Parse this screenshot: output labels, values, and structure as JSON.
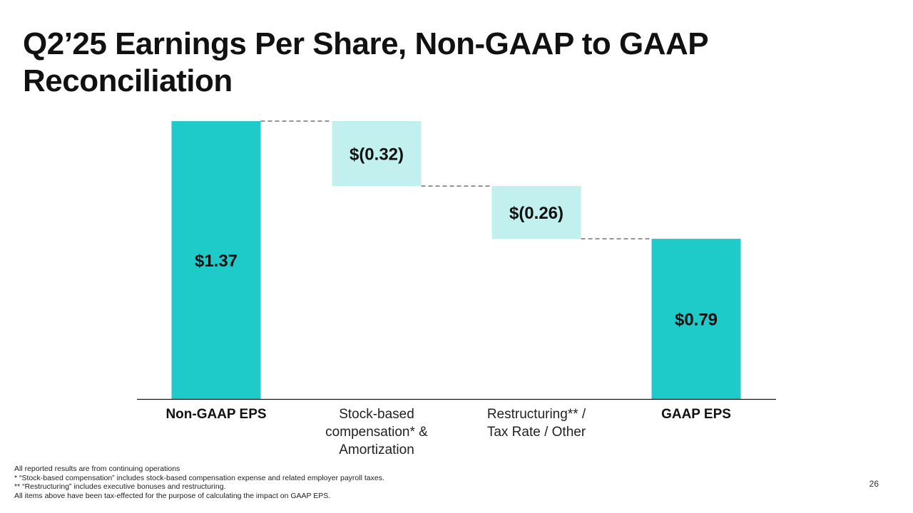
{
  "title": "Q2’25 Earnings Per Share, Non-GAAP to GAAP Reconciliation",
  "chart_data": {
    "type": "bar",
    "subtype": "waterfall",
    "title": "",
    "xlabel": "",
    "ylabel": "",
    "ylim": [
      0,
      1.37
    ],
    "grid": false,
    "categories": [
      [
        "Non-GAAP EPS"
      ],
      [
        "Stock-based",
        "compensation* &",
        "Amortization"
      ],
      [
        "Restructuring** /",
        "Tax Rate / Other"
      ],
      [
        "GAAP EPS"
      ]
    ],
    "bars": [
      {
        "kind": "total",
        "start": 0,
        "end": 1.37,
        "label": "$1.37",
        "bold_category": true
      },
      {
        "kind": "decrease",
        "start": 1.37,
        "end": 1.05,
        "label": "$(0.32)",
        "bold_category": false
      },
      {
        "kind": "decrease",
        "start": 1.05,
        "end": 0.79,
        "label": "$(0.26)",
        "bold_category": false
      },
      {
        "kind": "total",
        "start": 0,
        "end": 0.79,
        "label": "$0.79",
        "bold_category": true
      }
    ],
    "colors": {
      "total": "#1ecbc9",
      "decrease": "#c2f0ee",
      "connector": "#555555",
      "baseline": "#111111"
    }
  },
  "footnotes": [
    "All reported results are from continuing operations",
    "* “Stock-based compensation” includes stock-based compensation expense and related employer payroll taxes.",
    "** “Restructuring” includes executive bonuses and restructuring.",
    "All items above have been tax-effected for the purpose of calculating the impact on GAAP EPS."
  ],
  "page_number": "26"
}
